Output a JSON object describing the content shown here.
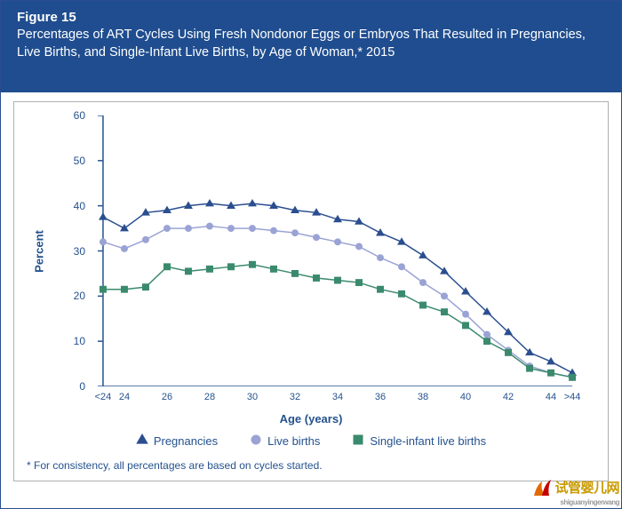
{
  "header": {
    "figure_label": "Figure 15",
    "title": "Percentages of ART Cycles Using Fresh Nondonor Eggs or Embryos That Resulted in Pregnancies, Live Births, and Single-Infant Live Births, by Age of Woman,* 2015",
    "bg_color": "#1f4d8f",
    "text_color": "#ffffff",
    "figure_label_fontsize": 15,
    "title_fontsize": 14.5
  },
  "chart": {
    "type": "line",
    "background_color": "#ffffff",
    "border_color": "#b0b0b0",
    "axis_color": "#24528e",
    "tick_color": "#24528e",
    "tick_fontsize": 12,
    "xtick_fontsize": 11,
    "ylabel": "Percent",
    "xlabel": "Age (years)",
    "label_fontsize": 13,
    "label_weight": "bold",
    "label_color": "#24528e",
    "ylim": [
      0,
      60
    ],
    "yticks": [
      0,
      10,
      20,
      30,
      40,
      50,
      60
    ],
    "x_categories": [
      "<24",
      "24",
      "25",
      "26",
      "27",
      "28",
      "29",
      "30",
      "31",
      "32",
      "33",
      "34",
      "35",
      "36",
      "37",
      "38",
      "39",
      "40",
      "41",
      "42",
      "43",
      "44",
      ">44"
    ],
    "x_axis_tick_labels": [
      "<24",
      "24",
      "",
      "26",
      "",
      "28",
      "",
      "30",
      "",
      "32",
      "",
      "34",
      "",
      "36",
      "",
      "38",
      "",
      "40",
      "",
      "42",
      "",
      "44",
      ">44"
    ],
    "series": [
      {
        "name": "Pregnancies",
        "marker": "triangle",
        "color": "#2a4e8f",
        "line_width": 1.5,
        "marker_size": 7,
        "values": [
          37.5,
          35.0,
          38.5,
          39.0,
          40.0,
          40.5,
          40.0,
          40.5,
          40.0,
          39.0,
          38.5,
          37.0,
          36.5,
          34.0,
          32.0,
          29.0,
          25.5,
          21.0,
          16.5,
          12.0,
          7.5,
          5.5,
          3.0
        ]
      },
      {
        "name": "Live births",
        "marker": "circle",
        "color": "#9aa3d4",
        "line_width": 1.5,
        "marker_size": 7,
        "values": [
          32.0,
          30.5,
          32.5,
          35.0,
          35.0,
          35.5,
          35.0,
          35.0,
          34.5,
          34.0,
          33.0,
          32.0,
          31.0,
          28.5,
          26.5,
          23.0,
          20.0,
          16.0,
          11.5,
          8.0,
          4.5,
          3.0,
          2.0
        ]
      },
      {
        "name": "Single-infant live births",
        "marker": "square",
        "color": "#3a8a6d",
        "line_width": 1.5,
        "marker_size": 7,
        "values": [
          21.5,
          21.5,
          22.0,
          26.5,
          25.5,
          26.0,
          26.5,
          27.0,
          26.0,
          25.0,
          24.0,
          23.5,
          23.0,
          21.5,
          20.5,
          18.0,
          16.5,
          13.5,
          10.0,
          7.5,
          4.0,
          3.0,
          2.0
        ]
      }
    ]
  },
  "legend": {
    "items": [
      {
        "symbol": "triangle",
        "color": "#2a4e8f",
        "label": "Pregnancies"
      },
      {
        "symbol": "circle",
        "color": "#9aa3d4",
        "label": "Live births"
      },
      {
        "symbol": "square",
        "color": "#3a8a6d",
        "label": "Single-infant live births"
      }
    ],
    "fontsize": 13,
    "color": "#24528e"
  },
  "footnote": {
    "text": "* For consistency, all percentages are based on cycles started.",
    "fontsize": 12,
    "color": "#24528e"
  },
  "watermark": {
    "zh": "试管婴儿网",
    "sub": "shiguanyingerwang",
    "zh_color": "#c99a00",
    "sub_color": "#999999"
  }
}
